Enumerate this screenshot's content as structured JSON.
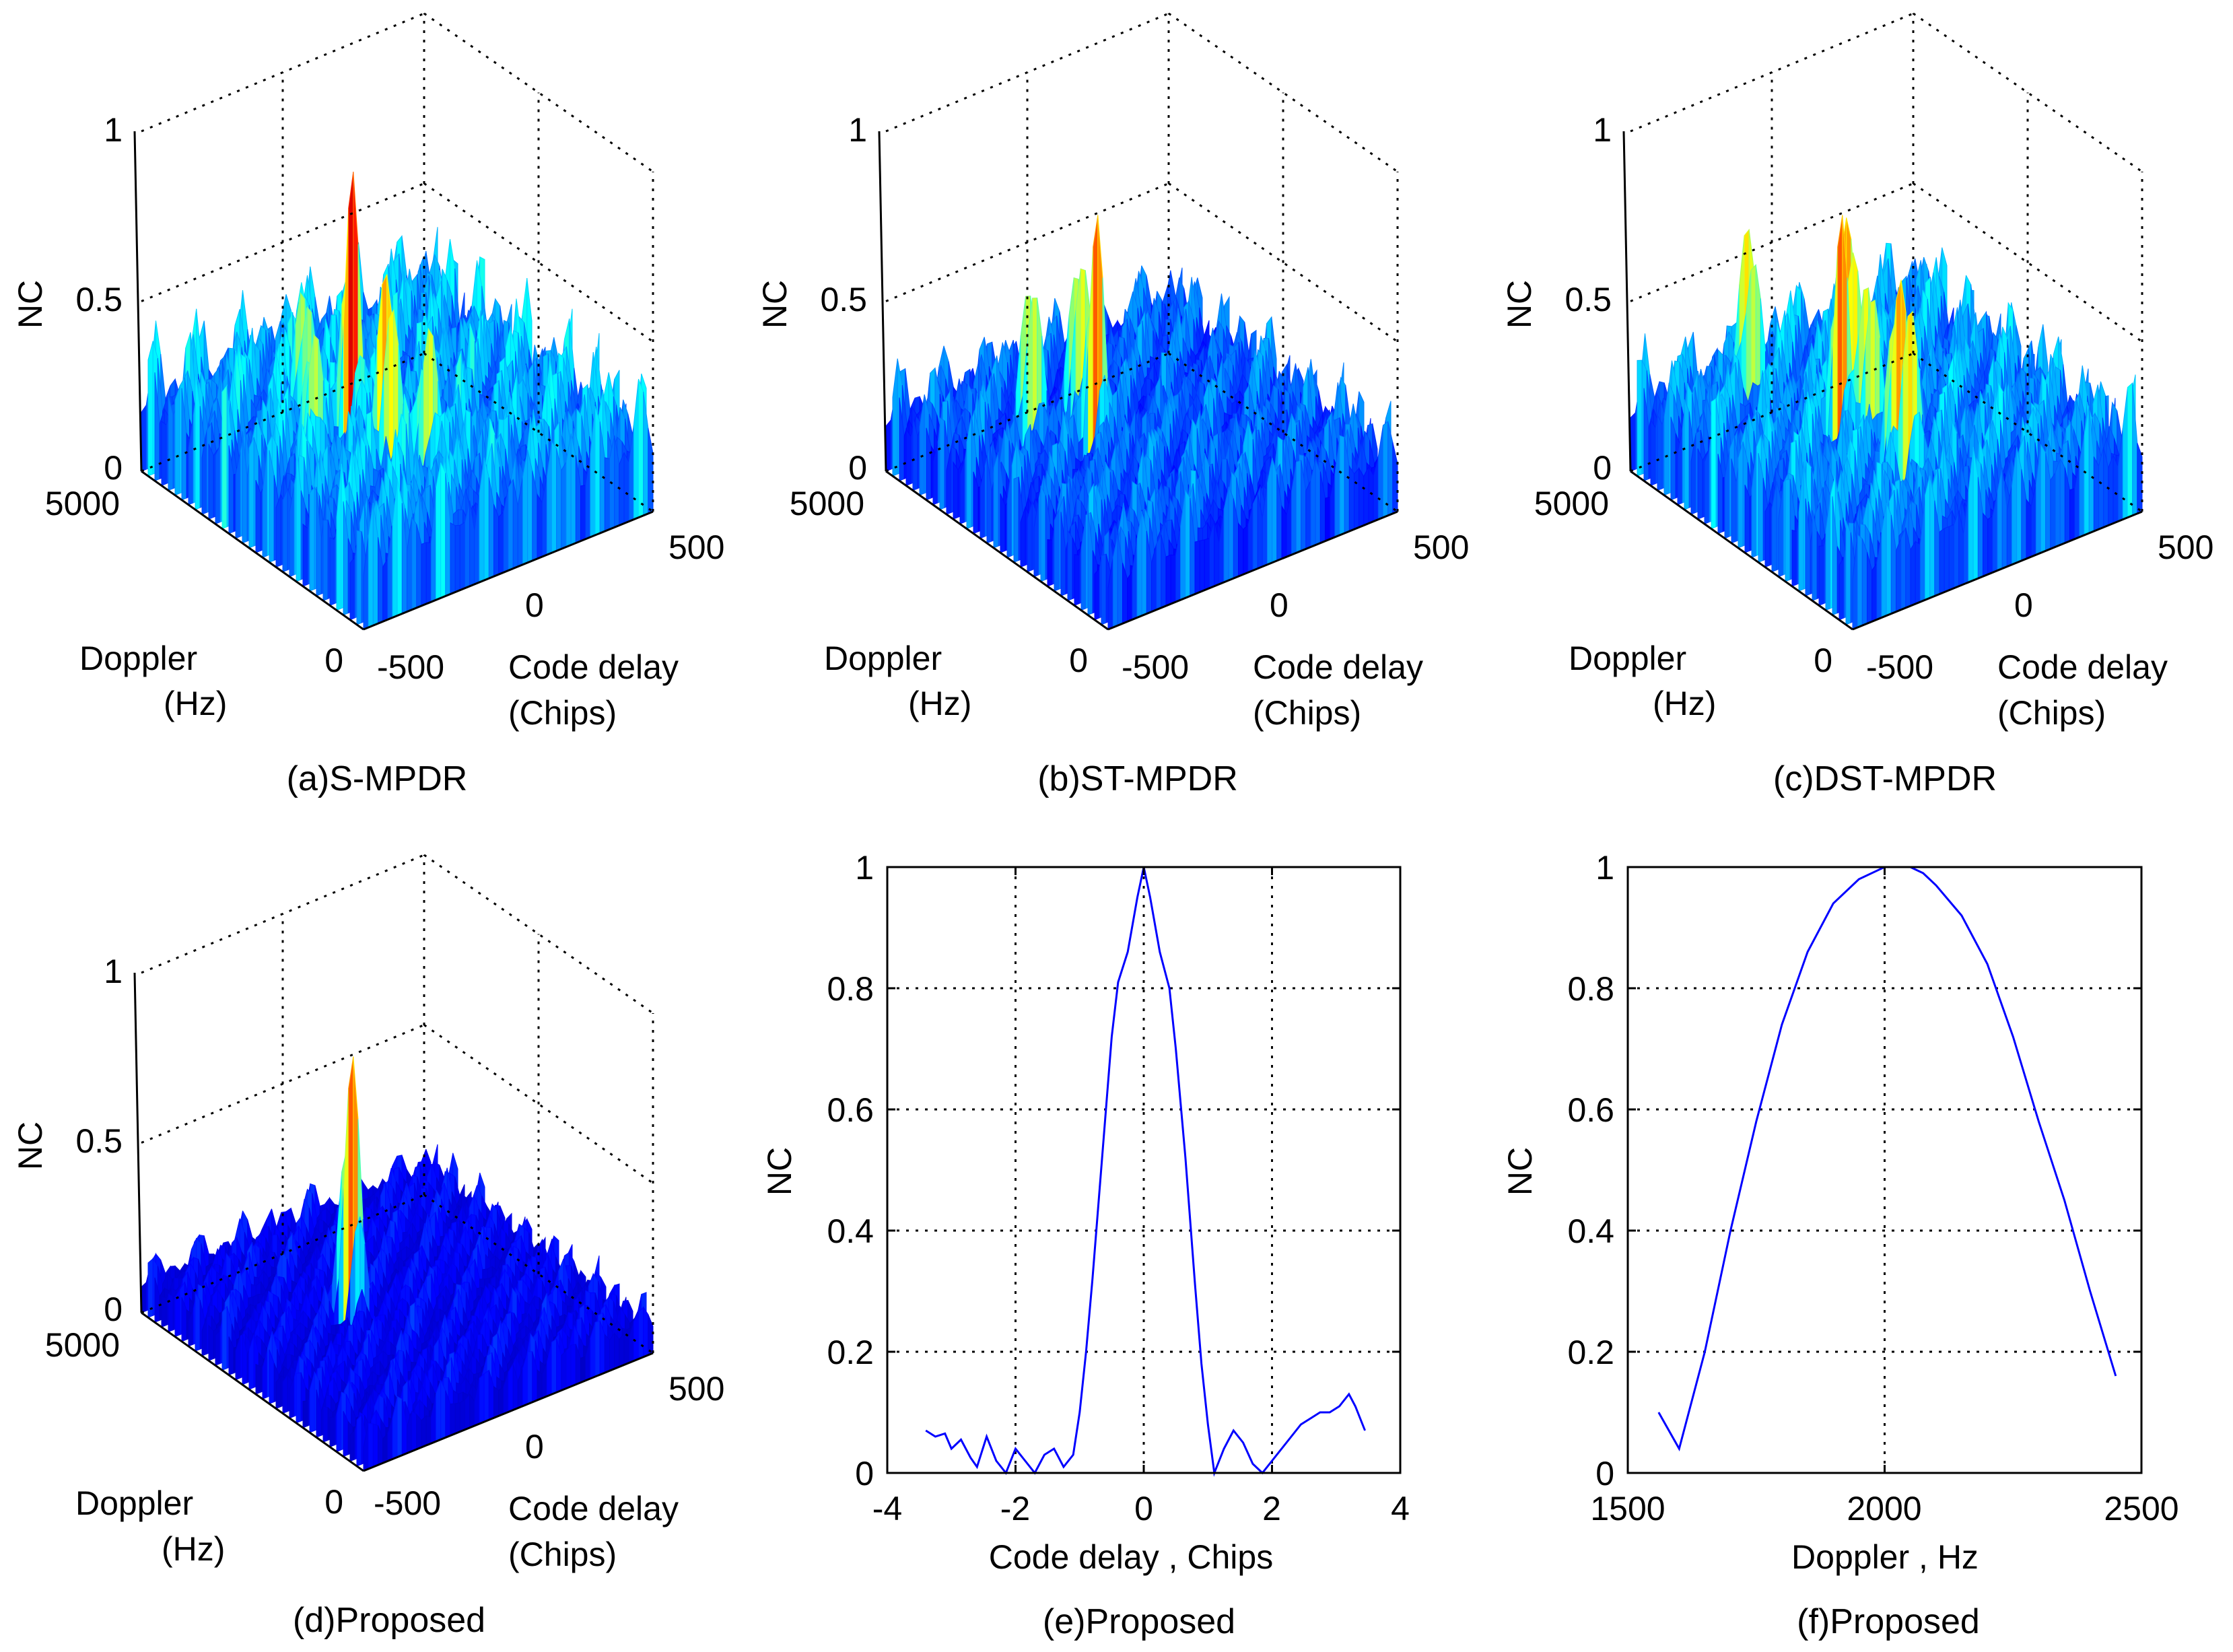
{
  "chart_data": [
    {
      "id": "a",
      "type": "surface3d",
      "title": "(a)S-MPDR",
      "zlabel": "NC",
      "xlabel": "Code delay",
      "xlabel2": "(Chips)",
      "ylabel": "Doppler",
      "ylabel2": "(Hz)",
      "zticks": [
        "0",
        "0.5",
        "1"
      ],
      "xticks": [
        "-500",
        "0",
        "500"
      ],
      "yticks": [
        "0",
        "5000"
      ],
      "zlim": [
        0,
        1
      ],
      "xlim": [
        -500,
        500
      ],
      "ylim": [
        0,
        5000
      ],
      "peak_nc": 0.98,
      "baseline_nc": 0.45,
      "noise_amplitude": 0.45,
      "secondary_peaks": 4
    },
    {
      "id": "b",
      "type": "surface3d",
      "title": "(b)ST-MPDR",
      "zlabel": "NC",
      "xlabel": "Code delay",
      "xlabel2": "(Chips)",
      "ylabel": "Doppler",
      "ylabel2": "(Hz)",
      "zticks": [
        "0",
        "0.5",
        "1"
      ],
      "xticks": [
        "-500",
        "0",
        "500"
      ],
      "yticks": [
        "0",
        "5000"
      ],
      "zlim": [
        0,
        1
      ],
      "xlim": [
        -500,
        500
      ],
      "ylim": [
        0,
        5000
      ],
      "peak_nc": 0.85,
      "baseline_nc": 0.35,
      "noise_amplitude": 0.35,
      "secondary_peaks": 2
    },
    {
      "id": "c",
      "type": "surface3d",
      "title": "(c)DST-MPDR",
      "zlabel": "NC",
      "xlabel": "Code delay",
      "xlabel2": "(Chips)",
      "ylabel": "Doppler",
      "ylabel2": "(Hz)",
      "zticks": [
        "0",
        "0.5",
        "1"
      ],
      "xticks": [
        "-500",
        "0",
        "500"
      ],
      "yticks": [
        "0",
        "5000"
      ],
      "zlim": [
        0,
        1
      ],
      "xlim": [
        -500,
        500
      ],
      "ylim": [
        0,
        5000
      ],
      "peak_nc": 0.85,
      "baseline_nc": 0.42,
      "noise_amplitude": 0.42,
      "secondary_peaks": 5
    },
    {
      "id": "d",
      "type": "surface3d",
      "title": "(d)Proposed",
      "zlabel": "NC",
      "xlabel": "Code delay",
      "xlabel2": "(Chips)",
      "ylabel": "Doppler",
      "ylabel2": "(Hz)",
      "zticks": [
        "0",
        "0.5",
        "1"
      ],
      "xticks": [
        "-500",
        "0",
        "500"
      ],
      "yticks": [
        "0",
        "5000"
      ],
      "zlim": [
        0,
        1
      ],
      "xlim": [
        -500,
        500
      ],
      "ylim": [
        0,
        5000
      ],
      "peak_nc": 0.85,
      "baseline_nc": 0.2,
      "noise_amplitude": 0.2,
      "secondary_peaks": 0
    },
    {
      "id": "e",
      "type": "line",
      "title": "(e)Proposed",
      "xlabel": "Code delay , Chips",
      "ylabel": "NC",
      "xlim": [
        -4,
        4
      ],
      "ylim": [
        0,
        1
      ],
      "xticks": [
        "-4",
        "-2",
        "0",
        "2",
        "4"
      ],
      "yticks": [
        "0",
        "0.2",
        "0.4",
        "0.6",
        "0.8",
        "1"
      ],
      "grid": true,
      "color": "#0000ff",
      "x": [
        -3.4,
        -3.25,
        -3.1,
        -3.0,
        -2.85,
        -2.7,
        -2.6,
        -2.45,
        -2.3,
        -2.15,
        -2.0,
        -1.85,
        -1.7,
        -1.55,
        -1.4,
        -1.25,
        -1.1,
        -1.0,
        -0.9,
        -0.8,
        -0.65,
        -0.5,
        -0.4,
        -0.25,
        -0.1,
        0.0,
        0.1,
        0.25,
        0.4,
        0.5,
        0.65,
        0.8,
        0.9,
        1.0,
        1.1,
        1.25,
        1.4,
        1.55,
        1.7,
        1.85,
        2.0,
        2.15,
        2.3,
        2.45,
        2.6,
        2.75,
        2.9,
        3.05,
        3.2,
        3.3,
        3.45
      ],
      "y": [
        0.07,
        0.06,
        0.065,
        0.04,
        0.055,
        0.025,
        0.01,
        0.06,
        0.02,
        0.0,
        0.04,
        0.02,
        0.0,
        0.03,
        0.04,
        0.01,
        0.03,
        0.1,
        0.2,
        0.32,
        0.52,
        0.72,
        0.81,
        0.86,
        0.95,
        1.0,
        0.95,
        0.86,
        0.8,
        0.7,
        0.52,
        0.31,
        0.18,
        0.08,
        0.0,
        0.04,
        0.07,
        0.05,
        0.015,
        0.0,
        0.02,
        0.04,
        0.06,
        0.08,
        0.09,
        0.1,
        0.1,
        0.11,
        0.13,
        0.11,
        0.07
      ]
    },
    {
      "id": "f",
      "type": "line",
      "title": "(f)Proposed",
      "xlabel": "Doppler , Hz",
      "ylabel": "NC",
      "xlim": [
        1500,
        2500
      ],
      "ylim": [
        0,
        1
      ],
      "xticks": [
        "1500",
        "2000",
        "2500"
      ],
      "yticks": [
        "0",
        "0.2",
        "0.4",
        "0.6",
        "0.8",
        "1"
      ],
      "grid": true,
      "color": "#0000ff",
      "x": [
        1560,
        1600,
        1650,
        1700,
        1750,
        1800,
        1850,
        1900,
        1950,
        2000,
        2025,
        2050,
        2075,
        2100,
        2150,
        2200,
        2250,
        2300,
        2350,
        2400,
        2450
      ],
      "y": [
        0.1,
        0.04,
        0.2,
        0.4,
        0.58,
        0.74,
        0.86,
        0.94,
        0.98,
        1.0,
        1.0,
        1.0,
        0.99,
        0.97,
        0.92,
        0.84,
        0.72,
        0.58,
        0.45,
        0.3,
        0.16
      ]
    }
  ]
}
